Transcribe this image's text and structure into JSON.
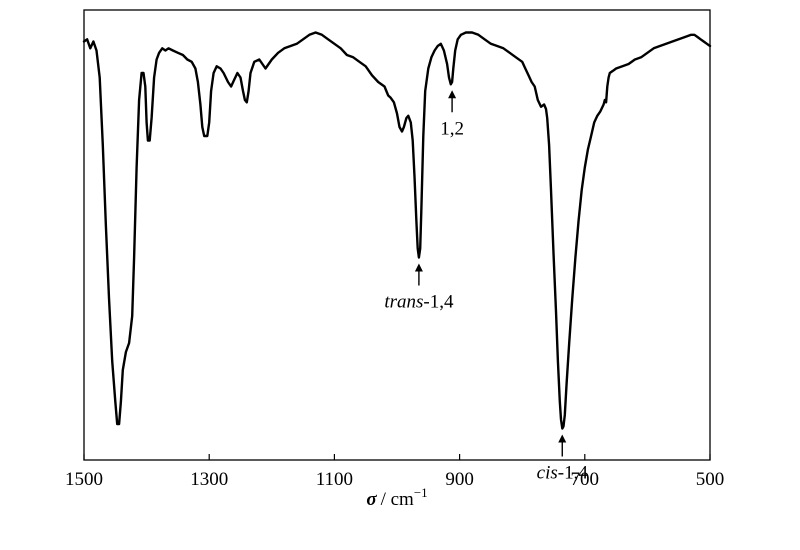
{
  "chart_data": {
    "type": "line",
    "title": "",
    "xlabel": {
      "symbol": "σ",
      "unit": "/ cm",
      "exponent": "−1"
    },
    "ylabel": "",
    "xlim": [
      1500,
      500
    ],
    "x_reversed": true,
    "y_ticks_shown": false,
    "grid": false,
    "x_ticks": [
      1500,
      1300,
      1100,
      900,
      700,
      500
    ],
    "series": [
      {
        "color": "#000000",
        "points": [
          [
            1500,
            0.93
          ],
          [
            1495,
            0.935
          ],
          [
            1490,
            0.915
          ],
          [
            1485,
            0.93
          ],
          [
            1480,
            0.91
          ],
          [
            1475,
            0.85
          ],
          [
            1470,
            0.7
          ],
          [
            1465,
            0.52
          ],
          [
            1460,
            0.36
          ],
          [
            1455,
            0.22
          ],
          [
            1450,
            0.13
          ],
          [
            1447,
            0.08
          ],
          [
            1444,
            0.08
          ],
          [
            1441,
            0.13
          ],
          [
            1438,
            0.2
          ],
          [
            1433,
            0.24
          ],
          [
            1428,
            0.26
          ],
          [
            1423,
            0.32
          ],
          [
            1420,
            0.45
          ],
          [
            1416,
            0.65
          ],
          [
            1412,
            0.8
          ],
          [
            1408,
            0.86
          ],
          [
            1405,
            0.86
          ],
          [
            1402,
            0.83
          ],
          [
            1400,
            0.75
          ],
          [
            1398,
            0.71
          ],
          [
            1395,
            0.71
          ],
          [
            1392,
            0.76
          ],
          [
            1388,
            0.85
          ],
          [
            1384,
            0.89
          ],
          [
            1380,
            0.905
          ],
          [
            1375,
            0.915
          ],
          [
            1370,
            0.91
          ],
          [
            1365,
            0.915
          ],
          [
            1358,
            0.91
          ],
          [
            1350,
            0.905
          ],
          [
            1342,
            0.9
          ],
          [
            1335,
            0.89
          ],
          [
            1328,
            0.885
          ],
          [
            1322,
            0.87
          ],
          [
            1318,
            0.84
          ],
          [
            1314,
            0.79
          ],
          [
            1311,
            0.74
          ],
          [
            1308,
            0.72
          ],
          [
            1303,
            0.72
          ],
          [
            1300,
            0.75
          ],
          [
            1297,
            0.82
          ],
          [
            1293,
            0.86
          ],
          [
            1288,
            0.875
          ],
          [
            1282,
            0.87
          ],
          [
            1277,
            0.86
          ],
          [
            1270,
            0.84
          ],
          [
            1265,
            0.83
          ],
          [
            1260,
            0.845
          ],
          [
            1255,
            0.86
          ],
          [
            1250,
            0.85
          ],
          [
            1246,
            0.82
          ],
          [
            1243,
            0.8
          ],
          [
            1240,
            0.795
          ],
          [
            1237,
            0.82
          ],
          [
            1234,
            0.86
          ],
          [
            1228,
            0.885
          ],
          [
            1220,
            0.89
          ],
          [
            1210,
            0.87
          ],
          [
            1200,
            0.89
          ],
          [
            1190,
            0.905
          ],
          [
            1180,
            0.915
          ],
          [
            1170,
            0.92
          ],
          [
            1160,
            0.925
          ],
          [
            1150,
            0.935
          ],
          [
            1140,
            0.945
          ],
          [
            1130,
            0.95
          ],
          [
            1120,
            0.945
          ],
          [
            1110,
            0.935
          ],
          [
            1100,
            0.925
          ],
          [
            1090,
            0.915
          ],
          [
            1080,
            0.9
          ],
          [
            1070,
            0.895
          ],
          [
            1060,
            0.885
          ],
          [
            1050,
            0.875
          ],
          [
            1040,
            0.855
          ],
          [
            1030,
            0.84
          ],
          [
            1020,
            0.83
          ],
          [
            1014,
            0.81
          ],
          [
            1010,
            0.805
          ],
          [
            1005,
            0.795
          ],
          [
            1000,
            0.77
          ],
          [
            996,
            0.74
          ],
          [
            992,
            0.73
          ],
          [
            989,
            0.74
          ],
          [
            985,
            0.76
          ],
          [
            982,
            0.765
          ],
          [
            978,
            0.75
          ],
          [
            975,
            0.71
          ],
          [
            972,
            0.63
          ],
          [
            969,
            0.53
          ],
          [
            967,
            0.47
          ],
          [
            965,
            0.45
          ],
          [
            963,
            0.47
          ],
          [
            961,
            0.56
          ],
          [
            958,
            0.72
          ],
          [
            955,
            0.82
          ],
          [
            950,
            0.87
          ],
          [
            945,
            0.895
          ],
          [
            940,
            0.91
          ],
          [
            935,
            0.92
          ],
          [
            930,
            0.925
          ],
          [
            925,
            0.91
          ],
          [
            920,
            0.88
          ],
          [
            917,
            0.85
          ],
          [
            914,
            0.835
          ],
          [
            912,
            0.84
          ],
          [
            910,
            0.87
          ],
          [
            907,
            0.91
          ],
          [
            903,
            0.935
          ],
          [
            898,
            0.945
          ],
          [
            890,
            0.95
          ],
          [
            880,
            0.95
          ],
          [
            870,
            0.945
          ],
          [
            860,
            0.935
          ],
          [
            850,
            0.925
          ],
          [
            840,
            0.92
          ],
          [
            830,
            0.915
          ],
          [
            820,
            0.905
          ],
          [
            810,
            0.895
          ],
          [
            800,
            0.885
          ],
          [
            795,
            0.87
          ],
          [
            790,
            0.855
          ],
          [
            785,
            0.84
          ],
          [
            780,
            0.83
          ],
          [
            775,
            0.8
          ],
          [
            770,
            0.785
          ],
          [
            765,
            0.79
          ],
          [
            762,
            0.78
          ],
          [
            760,
            0.76
          ],
          [
            757,
            0.7
          ],
          [
            754,
            0.6
          ],
          [
            750,
            0.46
          ],
          [
            746,
            0.33
          ],
          [
            743,
            0.22
          ],
          [
            740,
            0.13
          ],
          [
            738,
            0.09
          ],
          [
            736,
            0.07
          ],
          [
            734,
            0.075
          ],
          [
            732,
            0.1
          ],
          [
            729,
            0.17
          ],
          [
            725,
            0.26
          ],
          [
            720,
            0.36
          ],
          [
            715,
            0.45
          ],
          [
            710,
            0.53
          ],
          [
            705,
            0.6
          ],
          [
            700,
            0.65
          ],
          [
            695,
            0.69
          ],
          [
            690,
            0.72
          ],
          [
            685,
            0.75
          ],
          [
            680,
            0.765
          ],
          [
            675,
            0.775
          ],
          [
            670,
            0.79
          ],
          [
            668,
            0.8
          ],
          [
            666,
            0.795
          ],
          [
            664,
            0.83
          ],
          [
            662,
            0.85
          ],
          [
            660,
            0.86
          ],
          [
            655,
            0.865
          ],
          [
            650,
            0.87
          ],
          [
            640,
            0.875
          ],
          [
            630,
            0.88
          ],
          [
            620,
            0.89
          ],
          [
            610,
            0.895
          ],
          [
            600,
            0.905
          ],
          [
            590,
            0.915
          ],
          [
            580,
            0.92
          ],
          [
            570,
            0.925
          ],
          [
            560,
            0.93
          ],
          [
            550,
            0.935
          ],
          [
            540,
            0.94
          ],
          [
            530,
            0.945
          ],
          [
            525,
            0.945
          ],
          [
            520,
            0.94
          ],
          [
            515,
            0.935
          ],
          [
            510,
            0.93
          ],
          [
            505,
            0.925
          ],
          [
            500,
            0.92
          ]
        ]
      }
    ],
    "annotations": [
      {
        "italic": "",
        "text": "1,2",
        "x": 912,
        "y": 0.835,
        "label_side": "below"
      },
      {
        "italic": "trans",
        "text": "-1,4",
        "x": 965,
        "y": 0.45,
        "label_side": "below"
      },
      {
        "italic": "cis",
        "text": "-1,4",
        "x": 736,
        "y": 0.07,
        "label_side": "below"
      }
    ]
  }
}
